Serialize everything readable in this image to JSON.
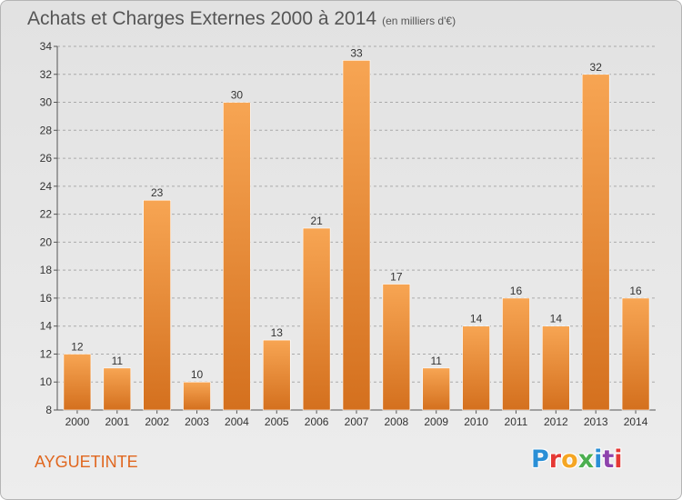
{
  "header": {
    "title": "Achats et Charges Externes 2000 à 2014",
    "subtitle": "(en milliers d'€)"
  },
  "footer": {
    "city": "AYGUETINTE",
    "logo_text": "Proxiti",
    "logo_colors": [
      "#2a8fd6",
      "#e53935",
      "#f5a623",
      "#4caf50",
      "#2a8fd6",
      "#8e44ad",
      "#e53935"
    ]
  },
  "colors": {
    "bar_light": "#f7a553",
    "bar_dark": "#d4701e",
    "grid": "#aaaaaa",
    "text": "#333333",
    "city": "#e0671f"
  },
  "chart_data": {
    "type": "bar",
    "title": "Achats et Charges Externes 2000 à 2014",
    "subtitle": "(en milliers d'€)",
    "categories": [
      "2000",
      "2001",
      "2002",
      "2003",
      "2004",
      "2005",
      "2006",
      "2007",
      "2008",
      "2009",
      "2010",
      "2011",
      "2012",
      "2013",
      "2014"
    ],
    "values": [
      12,
      11,
      23,
      10,
      30,
      13,
      21,
      33,
      17,
      11,
      14,
      16,
      14,
      32,
      16
    ],
    "ylim": [
      8,
      34
    ],
    "yticks": [
      8,
      10,
      12,
      14,
      16,
      18,
      20,
      22,
      24,
      26,
      28,
      30,
      32,
      34
    ],
    "grid": true,
    "data_labels": true
  }
}
